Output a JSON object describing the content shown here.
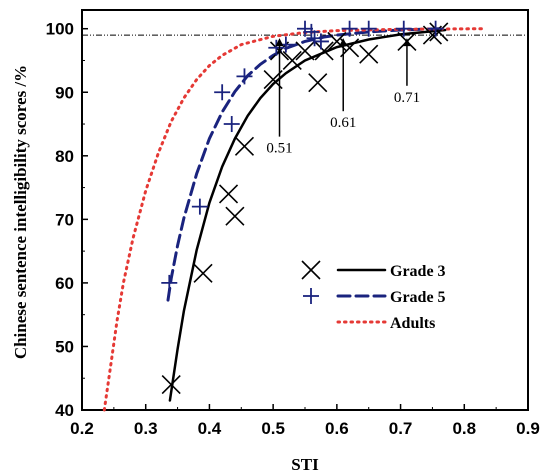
{
  "chart_data": {
    "type": "scatter",
    "xlabel": "STI",
    "ylabel": "Chinese sentence intelligibility scores /%",
    "xlim": [
      0.2,
      0.9
    ],
    "ylim": [
      40,
      102
    ],
    "x_ticks": [
      "0.2",
      "0.3",
      "0.4",
      "0.5",
      "0.6",
      "0.7",
      "0.8",
      "0.9"
    ],
    "y_ticks": [
      "40",
      "50",
      "60",
      "70",
      "80",
      "90",
      "100"
    ],
    "grid": false,
    "legend_position": "center-right",
    "reference_line_y": 99,
    "series": [
      {
        "name": "Grade 3",
        "color": "#000000",
        "marker": "x",
        "line_style": "solid",
        "points": [
          [
            0.34,
            44
          ],
          [
            0.39,
            61.5
          ],
          [
            0.43,
            74
          ],
          [
            0.44,
            70.5
          ],
          [
            0.455,
            81.5
          ],
          [
            0.5,
            92
          ],
          [
            0.51,
            96.5
          ],
          [
            0.53,
            95
          ],
          [
            0.55,
            96.5
          ],
          [
            0.57,
            91.5
          ],
          [
            0.58,
            96.5
          ],
          [
            0.6,
            98
          ],
          [
            0.62,
            97
          ],
          [
            0.65,
            96
          ],
          [
            0.71,
            98
          ],
          [
            0.75,
            99
          ],
          [
            0.76,
            99.5
          ]
        ],
        "fit": [
          [
            0.338,
            41.5
          ],
          [
            0.35,
            49.6
          ],
          [
            0.36,
            55.6
          ],
          [
            0.38,
            65.2
          ],
          [
            0.4,
            72.6
          ],
          [
            0.42,
            78.3
          ],
          [
            0.44,
            82.7
          ],
          [
            0.46,
            86.3
          ],
          [
            0.48,
            89.1
          ],
          [
            0.5,
            91.3
          ],
          [
            0.52,
            93
          ],
          [
            0.55,
            95
          ],
          [
            0.6,
            97.1
          ],
          [
            0.65,
            98.3
          ],
          [
            0.7,
            99.1
          ],
          [
            0.75,
            99.6
          ],
          [
            0.77,
            99.8
          ]
        ]
      },
      {
        "name": "Grade 5",
        "color": "#1a237e",
        "marker": "+",
        "line_style": "dashed",
        "points": [
          [
            0.337,
            60
          ],
          [
            0.385,
            72
          ],
          [
            0.42,
            90
          ],
          [
            0.435,
            85
          ],
          [
            0.455,
            92.5
          ],
          [
            0.505,
            97
          ],
          [
            0.52,
            97.5
          ],
          [
            0.55,
            100
          ],
          [
            0.56,
            99.5
          ],
          [
            0.565,
            98.5
          ],
          [
            0.575,
            98
          ],
          [
            0.62,
            100
          ],
          [
            0.65,
            100
          ],
          [
            0.705,
            100
          ],
          [
            0.755,
            100
          ]
        ],
        "fit": [
          [
            0.335,
            57.3
          ],
          [
            0.34,
            60.7
          ],
          [
            0.35,
            65.9
          ],
          [
            0.36,
            70.2
          ],
          [
            0.38,
            77.2
          ],
          [
            0.4,
            82.7
          ],
          [
            0.42,
            86.9
          ],
          [
            0.44,
            90.1
          ],
          [
            0.46,
            92.6
          ],
          [
            0.48,
            94.4
          ],
          [
            0.5,
            95.8
          ],
          [
            0.52,
            96.9
          ],
          [
            0.55,
            98
          ],
          [
            0.58,
            98.7
          ],
          [
            0.6,
            99
          ],
          [
            0.65,
            99.5
          ],
          [
            0.7,
            99.8
          ],
          [
            0.76,
            100
          ]
        ]
      },
      {
        "name": "Adults",
        "color": "#e53935",
        "marker": "none",
        "line_style": "dotted",
        "points": [],
        "fit": [
          [
            0.235,
            40
          ],
          [
            0.245,
            47
          ],
          [
            0.255,
            54
          ],
          [
            0.265,
            60
          ],
          [
            0.28,
            67
          ],
          [
            0.3,
            74.5
          ],
          [
            0.32,
            80.5
          ],
          [
            0.34,
            85.4
          ],
          [
            0.36,
            89.1
          ],
          [
            0.38,
            92
          ],
          [
            0.4,
            94.2
          ],
          [
            0.42,
            95.8
          ],
          [
            0.45,
            97.5
          ],
          [
            0.5,
            98.8
          ],
          [
            0.55,
            99.4
          ],
          [
            0.6,
            99.7
          ],
          [
            0.7,
            99.9
          ],
          [
            0.83,
            100
          ]
        ]
      }
    ],
    "annotations": [
      {
        "text": "0.51",
        "x": 0.51,
        "y": 99,
        "label_y": 80.5
      },
      {
        "text": "0.61",
        "x": 0.61,
        "y": 99,
        "label_y": 84.5
      },
      {
        "text": "0.71",
        "x": 0.71,
        "y": 99,
        "label_y": 88.5
      }
    ]
  }
}
